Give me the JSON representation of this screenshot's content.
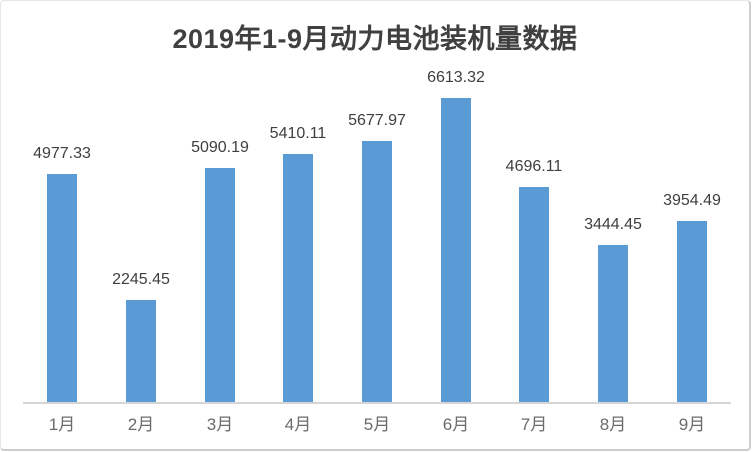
{
  "chart": {
    "bar_color": "#5b9bd5",
    "title_color": "#404040",
    "value_label_color": "#3f3f3f",
    "axis_label_color": "#6b6b6b",
    "axis_line_color": "#d6d6d6",
    "background_color": "#ffffff"
  },
  "chart_data": {
    "type": "bar",
    "title": "2019年1-9月动力电池装机量数据",
    "categories": [
      "1月",
      "2月",
      "3月",
      "4月",
      "5月",
      "6月",
      "7月",
      "8月",
      "9月"
    ],
    "values": [
      4977.33,
      2245.45,
      5090.19,
      5410.11,
      5677.97,
      6613.32,
      4696.11,
      3444.45,
      3954.49
    ],
    "data_labels": [
      "4977.33",
      "2245.45",
      "5090.19",
      "5410.11",
      "5677.97",
      "6613.32",
      "4696.11",
      "3444.45",
      "3954.49"
    ],
    "xlabel": "",
    "ylabel": "",
    "ylim": [
      0,
      7000
    ],
    "grid": false,
    "legend": null,
    "data_labels_visible": true
  }
}
